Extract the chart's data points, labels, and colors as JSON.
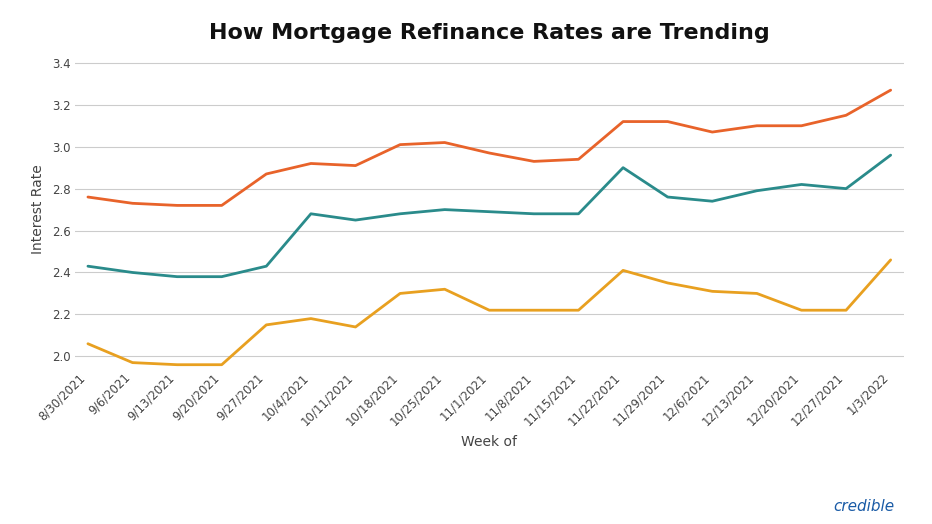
{
  "title": "How Mortgage Refinance Rates are Trending",
  "xlabel": "Week of",
  "ylabel": "Interest Rate",
  "background_color": "#ffffff",
  "grid_color": "#cccccc",
  "title_fontsize": 16,
  "axis_fontsize": 10,
  "tick_fontsize": 8.5,
  "legend_fontsize": 10,
  "ylim": [
    1.95,
    3.45
  ],
  "yticks": [
    2.0,
    2.2,
    2.4,
    2.6,
    2.8,
    3.0,
    3.2,
    3.4
  ],
  "weeks": [
    "8/30/2021",
    "9/6/2021",
    "9/13/2021",
    "9/20/2021",
    "9/27/2021",
    "10/4/2021",
    "10/11/2021",
    "10/18/2021",
    "10/25/2021",
    "11/1/2021",
    "11/8/2021",
    "11/15/2021",
    "11/22/2021",
    "11/29/2021",
    "12/6/2021",
    "12/13/2021",
    "12/20/2021",
    "12/27/2021",
    "1/3/2022"
  ],
  "series": {
    "30-year fixed": {
      "color": "#E8632A",
      "values": [
        2.76,
        2.73,
        2.72,
        2.72,
        2.87,
        2.92,
        2.91,
        3.01,
        3.02,
        2.97,
        2.93,
        2.94,
        3.12,
        3.12,
        3.07,
        3.1,
        3.1,
        3.15,
        3.27
      ]
    },
    "20-year-fixed": {
      "color": "#2A8B8B",
      "values": [
        2.43,
        2.4,
        2.38,
        2.38,
        2.43,
        2.68,
        2.65,
        2.68,
        2.7,
        2.69,
        2.68,
        2.68,
        2.9,
        2.76,
        2.74,
        2.79,
        2.82,
        2.8,
        2.96
      ]
    },
    "15-year-fixed": {
      "color": "#E8A020",
      "values": [
        2.06,
        1.97,
        1.96,
        1.96,
        2.15,
        2.18,
        2.14,
        2.3,
        2.32,
        2.22,
        2.22,
        2.22,
        2.41,
        2.35,
        2.31,
        2.3,
        2.22,
        2.22,
        2.46
      ]
    }
  },
  "credible_color": "#1a5ba6",
  "credible_text": "credible"
}
